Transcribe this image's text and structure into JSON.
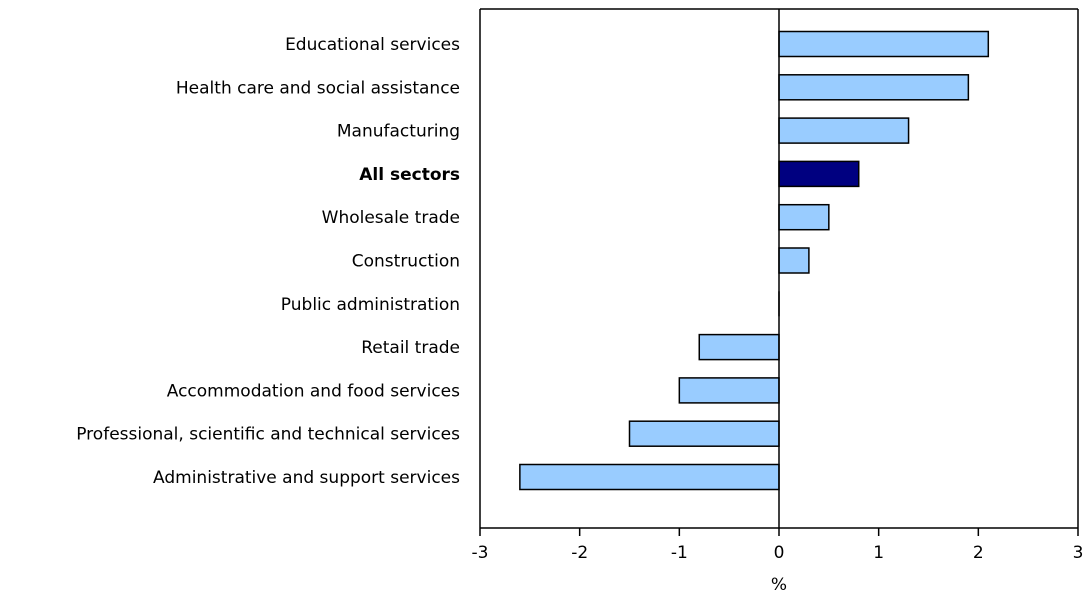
{
  "chart_data": {
    "type": "bar",
    "orientation": "horizontal",
    "categories": [
      "Educational services",
      "Health care and social assistance",
      "Manufacturing",
      "All sectors",
      "Wholesale trade",
      "Construction",
      "Public administration",
      "Retail trade",
      "Accommodation and food services",
      "Professional, scientific and technical services",
      "Administrative and support services"
    ],
    "values": [
      2.1,
      1.9,
      1.3,
      0.8,
      0.5,
      0.3,
      0.0,
      -0.8,
      -1.0,
      -1.5,
      -2.6
    ],
    "highlight_category": "All sectors",
    "xlabel": "%",
    "ylabel": "",
    "xlim": [
      -3,
      3
    ],
    "xticks": [
      "-3",
      "-2",
      "-1",
      "0",
      "1",
      "2",
      "3"
    ],
    "grid": false,
    "colors": {
      "bar": "#99ccff",
      "highlight": "#000080",
      "outline": "#000000"
    }
  }
}
